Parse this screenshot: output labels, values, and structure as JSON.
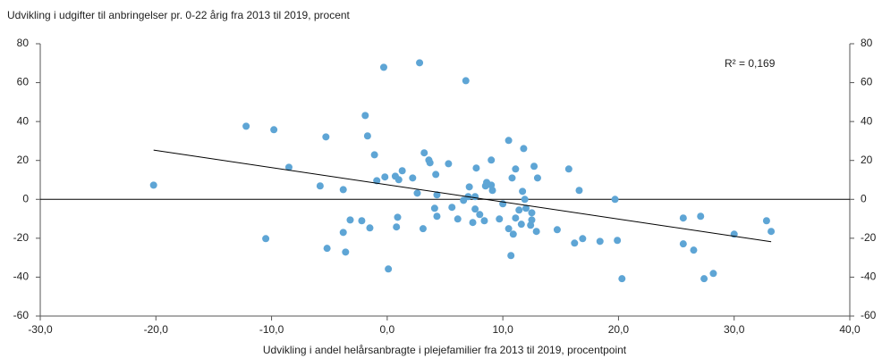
{
  "chart_data": {
    "type": "scatter",
    "title": "Udvikling i udgifter til anbringelser pr. 0-22 årig fra 2013 til 2019, procent",
    "x_label": "Udvikling i andel helårsanbragte i plejefamilier fra 2013 til 2019, procentpoint",
    "annotation": "R² = 0,169",
    "color": "#5ea5d5",
    "xlim": [
      -30,
      40
    ],
    "xticks": [
      {
        "value": -30,
        "label": "-30,0"
      },
      {
        "value": -20,
        "label": "-20,0"
      },
      {
        "value": -10,
        "label": "-10,0"
      },
      {
        "value": 0,
        "label": "0,0"
      },
      {
        "value": 10,
        "label": "10,0"
      },
      {
        "value": 20,
        "label": "20,0"
      },
      {
        "value": 30,
        "label": "30,0"
      },
      {
        "value": 40,
        "label": "40,0"
      }
    ],
    "ylim": [
      -60,
      80
    ],
    "yticks": [
      -60,
      -40,
      -20,
      0,
      20,
      40,
      60,
      80
    ],
    "trendline": {
      "x": [
        -20.2,
        33.2
      ],
      "y": [
        25.3,
        -21.8
      ]
    },
    "x": [
      -20.2,
      -12.2,
      -9.8,
      -10.5,
      -8.5,
      -5.8,
      -5.3,
      -5.2,
      -3.8,
      -3.8,
      -3.6,
      -3.2,
      -2.2,
      -1.9,
      -1.7,
      -1.5,
      -1.1,
      -0.9,
      -0.3,
      -0.2,
      0.1,
      0.7,
      1.0,
      0.8,
      0.9,
      1.3,
      2.2,
      2.6,
      2.8,
      3.2,
      3.1,
      3.6,
      3.7,
      4.2,
      4.1,
      4.3,
      4.3,
      5.3,
      5.6,
      6.1,
      6.6,
      6.8,
      7.0,
      7.1,
      7.6,
      7.7,
      7.4,
      7.6,
      8.0,
      8.4,
      8.5,
      8.6,
      9.0,
      9.0,
      9.1,
      9.7,
      10.0,
      10.5,
      10.5,
      10.7,
      10.8,
      10.9,
      11.1,
      11.1,
      11.4,
      11.6,
      11.7,
      11.8,
      11.9,
      12.0,
      12.4,
      12.5,
      12.5,
      12.7,
      12.9,
      13.0,
      14.7,
      15.7,
      16.2,
      16.6,
      16.9,
      18.4,
      19.7,
      19.9,
      20.3,
      25.6,
      25.6,
      26.5,
      27.1,
      27.4,
      28.2,
      30.0,
      32.8,
      33.2
    ],
    "values": [
      7.3,
      37.6,
      35.8,
      -20.2,
      16.5,
      6.9,
      32.1,
      -25.2,
      5.0,
      -17.0,
      -27.1,
      -10.6,
      -11.0,
      43.1,
      32.6,
      -14.7,
      22.9,
      9.6,
      67.9,
      11.5,
      -35.8,
      11.9,
      10.1,
      -14.2,
      -9.2,
      14.7,
      11.0,
      3.2,
      70.2,
      23.9,
      -15.1,
      20.2,
      18.8,
      12.8,
      -4.6,
      -8.7,
      2.3,
      18.3,
      -4.1,
      -10.1,
      -0.5,
      61.0,
      1.4,
      6.4,
      1.4,
      16.1,
      -11.9,
      -5.0,
      -7.8,
      -11.0,
      6.9,
      8.7,
      7.3,
      20.2,
      4.6,
      -10.1,
      -2.3,
      30.3,
      -15.1,
      -28.9,
      11.0,
      -17.9,
      -9.6,
      15.6,
      -5.5,
      -12.8,
      4.1,
      26.1,
      0.0,
      -4.6,
      -13.3,
      -10.6,
      -6.9,
      17.0,
      -16.5,
      11.0,
      -15.6,
      15.6,
      -22.5,
      4.6,
      -20.2,
      -21.6,
      0.0,
      -21.1,
      -40.8,
      -9.6,
      -22.9,
      -26.1,
      -8.7,
      -40.8,
      -38.1,
      -17.9,
      -11.0,
      -16.5
    ]
  }
}
